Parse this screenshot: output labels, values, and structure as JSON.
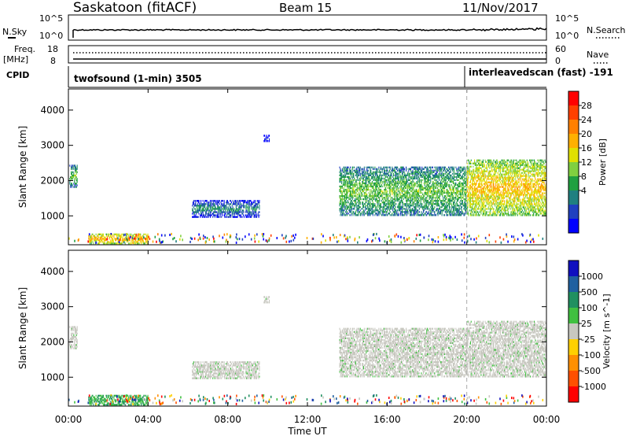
{
  "header": {
    "station": "Saskatoon (fitACF)",
    "beam": "Beam 15",
    "date": "11/Nov/2017"
  },
  "top_panels": {
    "nsky_label": "N.Sky",
    "nsky_ticks": [
      "10^5",
      "10^0"
    ],
    "nsearch_label": "N.Search",
    "freq_label_1": "Freq.",
    "freq_label_2": "[MHz]",
    "freq_ticks": [
      "18",
      "8"
    ],
    "nave_label": "Nave",
    "nave_ticks": [
      "60",
      "0"
    ],
    "cpid_label": "CPID",
    "cpid_1": "twofsound (1-min) 3505",
    "cpid_2": "interleavedscan (fast) -191"
  },
  "power_colorbar": {
    "label": "Power [dB]",
    "ticks": [
      "28",
      "24",
      "20",
      "16",
      "12",
      "8",
      "4"
    ],
    "colors": [
      "#ff0000",
      "#ff4000",
      "#ff8000",
      "#ffb000",
      "#e0e000",
      "#80d040",
      "#20a040",
      "#208080",
      "#2040c0",
      "#0000ff"
    ]
  },
  "velocity_colorbar": {
    "label": "Velocity [m s^-1]",
    "ticks": [
      "1000",
      "500",
      "100",
      "25",
      "-25",
      "-100",
      "-500",
      "-1000"
    ],
    "colors": [
      "#1010c0",
      "#2060a0",
      "#209060",
      "#40c040",
      "#c8c8c0",
      "#ffd000",
      "#ff9000",
      "#ff5000",
      "#ff0000"
    ]
  },
  "chart_data": {
    "type": "heatmap",
    "xlabel": "Time UT",
    "ylabel": "Slant Range [km]",
    "x_ticks": [
      "00:00",
      "04:00",
      "08:00",
      "12:00",
      "16:00",
      "20:00",
      "00:00"
    ],
    "y_ticks": [
      "1000",
      "2000",
      "3000",
      "4000"
    ],
    "x_range_hours": [
      0,
      24
    ],
    "y_range_km": [
      180,
      4600
    ],
    "mode_change_hour": 20,
    "power_regions": [
      {
        "t0": 0.05,
        "t1": 0.45,
        "r0": 1800,
        "r1": 2450,
        "mean_db": 14
      },
      {
        "t0": 1.0,
        "t1": 4.0,
        "r0": 200,
        "r1": 500,
        "mean_db": 22
      },
      {
        "t0": 6.2,
        "t1": 9.6,
        "r0": 950,
        "r1": 1450,
        "mean_db": 10
      },
      {
        "t0": 9.8,
        "t1": 10.1,
        "r0": 3100,
        "r1": 3300,
        "mean_db": 6
      },
      {
        "t0": 13.6,
        "t1": 20.0,
        "r0": 1000,
        "r1": 2400,
        "mean_db": 14
      },
      {
        "t0": 20.0,
        "t1": 24.0,
        "r0": 1000,
        "r1": 2600,
        "mean_db": 20
      }
    ]
  }
}
